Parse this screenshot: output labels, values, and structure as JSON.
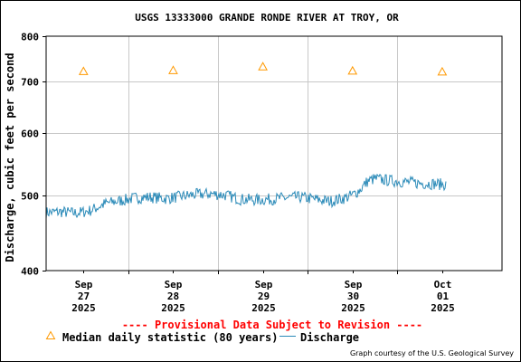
{
  "chart_data": {
    "type": "line",
    "title": "USGS 13333000 GRANDE RONDE RIVER AT TROY, OR",
    "ylabel": "Discharge, cubic feet per second",
    "xlabel": "",
    "y_scale": "log",
    "ylim": [
      400,
      800
    ],
    "y_ticks": [
      400,
      500,
      600,
      700,
      800
    ],
    "y_tick_labels": [
      "400",
      "500",
      "600",
      "700",
      "800"
    ],
    "xlim": [
      "2025-09-26T14:00",
      "2025-10-01T16:00"
    ],
    "x_ticks": [
      {
        "value": "2025-09-27T00:00",
        "label": [
          "Sep",
          "27",
          "2025"
        ]
      },
      {
        "value": "2025-09-28T00:00",
        "label": [
          "Sep",
          "28",
          "2025"
        ]
      },
      {
        "value": "2025-09-29T00:00",
        "label": [
          "Sep",
          "29",
          "2025"
        ]
      },
      {
        "value": "2025-09-30T00:00",
        "label": [
          "Sep",
          "30",
          "2025"
        ]
      },
      {
        "value": "2025-10-01T00:00",
        "label": [
          "Oct",
          "01",
          "2025"
        ]
      }
    ],
    "x_minor_ticks": [
      "2025-09-27T12:00",
      "2025-09-28T12:00",
      "2025-09-29T12:00",
      "2025-09-30T12:00"
    ],
    "grid": true,
    "series": [
      {
        "name": "Median daily statistic (80 years)",
        "kind": "marker-triangle",
        "color": "#ff9900",
        "points": [
          {
            "x": "2025-09-27T00:00",
            "y": 721
          },
          {
            "x": "2025-09-28T00:00",
            "y": 723
          },
          {
            "x": "2025-09-29T00:00",
            "y": 731
          },
          {
            "x": "2025-09-30T00:00",
            "y": 722
          },
          {
            "x": "2025-10-01T00:00",
            "y": 720
          }
        ]
      },
      {
        "name": "Discharge",
        "kind": "line",
        "color": "#2a8ab8",
        "points": [
          {
            "x": "2025-09-26T14:00",
            "y": 475
          },
          {
            "x": "2025-09-26T18:00",
            "y": 476
          },
          {
            "x": "2025-09-26T22:00",
            "y": 474
          },
          {
            "x": "2025-09-27T02:00",
            "y": 478
          },
          {
            "x": "2025-09-27T06:00",
            "y": 488
          },
          {
            "x": "2025-09-27T10:00",
            "y": 492
          },
          {
            "x": "2025-09-27T14:00",
            "y": 496
          },
          {
            "x": "2025-09-27T18:00",
            "y": 497
          },
          {
            "x": "2025-09-27T22:00",
            "y": 495
          },
          {
            "x": "2025-09-28T02:00",
            "y": 498
          },
          {
            "x": "2025-09-28T06:00",
            "y": 501
          },
          {
            "x": "2025-09-28T10:00",
            "y": 502
          },
          {
            "x": "2025-09-28T14:00",
            "y": 500
          },
          {
            "x": "2025-09-28T18:00",
            "y": 494
          },
          {
            "x": "2025-09-28T22:00",
            "y": 493
          },
          {
            "x": "2025-09-29T02:00",
            "y": 494
          },
          {
            "x": "2025-09-29T06:00",
            "y": 496
          },
          {
            "x": "2025-09-29T10:00",
            "y": 497
          },
          {
            "x": "2025-09-29T14:00",
            "y": 494
          },
          {
            "x": "2025-09-29T18:00",
            "y": 491
          },
          {
            "x": "2025-09-29T22:00",
            "y": 496
          },
          {
            "x": "2025-09-30T00:00",
            "y": 500
          },
          {
            "x": "2025-09-30T02:00",
            "y": 508
          },
          {
            "x": "2025-09-30T04:00",
            "y": 521
          },
          {
            "x": "2025-09-30T06:00",
            "y": 525
          },
          {
            "x": "2025-09-30T10:00",
            "y": 522
          },
          {
            "x": "2025-09-30T14:00",
            "y": 520
          },
          {
            "x": "2025-09-30T18:00",
            "y": 518
          },
          {
            "x": "2025-09-30T22:00",
            "y": 517
          },
          {
            "x": "2025-10-01T01:00",
            "y": 516
          }
        ]
      }
    ]
  },
  "provisional_notice": "---- Provisional Data Subject to Revision ----",
  "legend": {
    "median_label": "Median daily statistic (80 years)",
    "discharge_label": "Discharge"
  },
  "credit": "Graph courtesy of the U.S. Geological Survey",
  "colors": {
    "median": "#ff9900",
    "discharge": "#2a8ab8",
    "notice": "#ff0000",
    "grid": "#c8c8c8"
  }
}
